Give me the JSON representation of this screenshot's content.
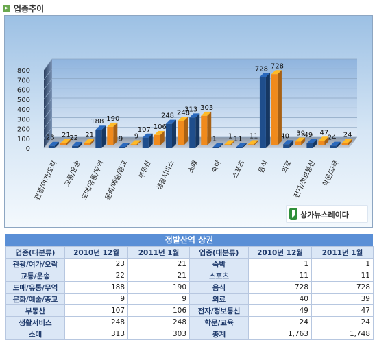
{
  "header": {
    "title": "업종추이",
    "icon": "arrow-right-icon"
  },
  "chart_data": {
    "type": "bar",
    "yticks": [
      "800",
      "700",
      "600",
      "500",
      "400",
      "300",
      "200",
      "100",
      "0"
    ],
    "ylim": [
      0,
      800
    ],
    "grid": true,
    "categories": [
      "관광/여가/오락",
      "교통/운송",
      "도매/유통/무역",
      "문화/예술/종교",
      "부동산",
      "생활서비스",
      "소매",
      "숙박",
      "스포츠",
      "음식",
      "의료",
      "전자/정보통신",
      "학문/교육"
    ],
    "series": [
      {
        "values": [
          23,
          22,
          188,
          9,
          107,
          248,
          313,
          1,
          11,
          728,
          40,
          49,
          24
        ],
        "color": "#1f4e8c"
      },
      {
        "values": [
          21,
          21,
          190,
          9,
          106,
          248,
          303,
          1,
          11,
          728,
          39,
          47,
          24
        ],
        "color": "#f08a1c"
      }
    ],
    "logo_text": "상가뉴스레이다"
  },
  "table": {
    "title": "정발산역 상권",
    "headers": [
      "업종(대분류)",
      "2010년 12월",
      "2011년 1월",
      "업종(대분류)",
      "2010년 12월",
      "2011년 1월"
    ],
    "rows": [
      [
        "관광/여가/오락",
        "23",
        "21",
        "숙박",
        "1",
        "1"
      ],
      [
        "교통/운송",
        "22",
        "21",
        "스포츠",
        "11",
        "11"
      ],
      [
        "도매/유통/무역",
        "188",
        "190",
        "음식",
        "728",
        "728"
      ],
      [
        "문화/예술/종교",
        "9",
        "9",
        "의료",
        "40",
        "39"
      ],
      [
        "부동산",
        "107",
        "106",
        "전자/정보통신",
        "49",
        "47"
      ],
      [
        "생활서비스",
        "248",
        "248",
        "학문/교육",
        "24",
        "24"
      ],
      [
        "소매",
        "313",
        "303",
        "총계",
        "1,763",
        "1,748"
      ]
    ]
  }
}
